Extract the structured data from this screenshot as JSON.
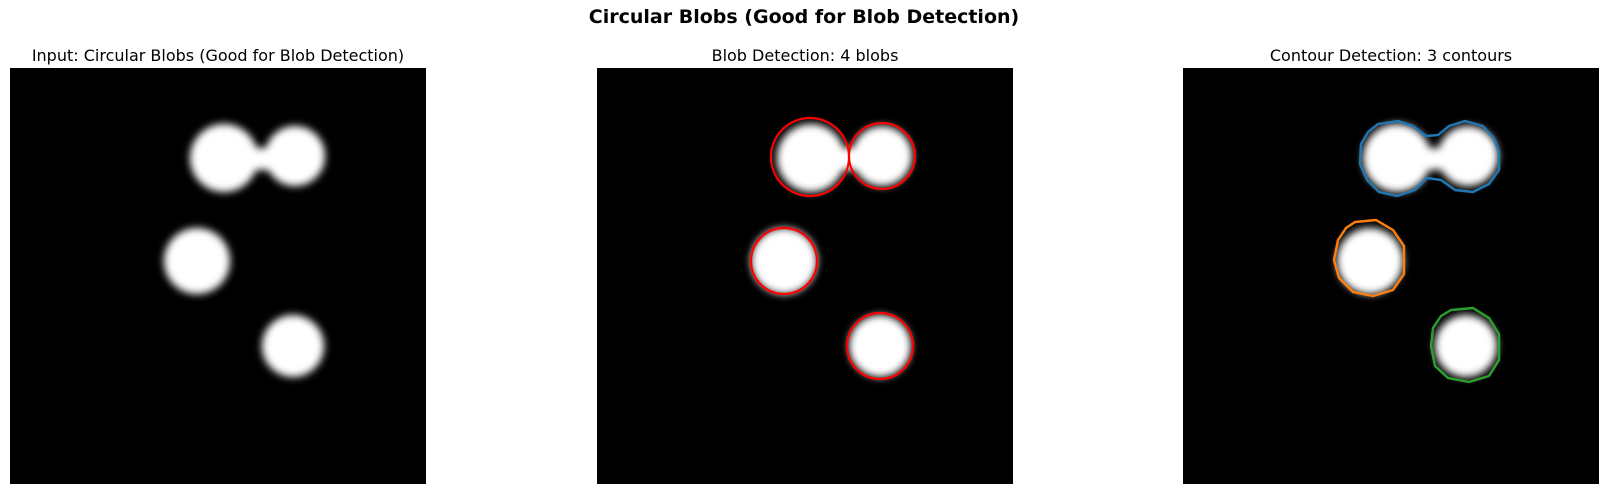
{
  "figure": {
    "title": "Circular Blobs (Good for Blob Detection)"
  },
  "panels": [
    {
      "title": "Input: Circular Blobs (Good for Blob Detection)",
      "overlay": "none"
    },
    {
      "title": "Blob Detection: 4 blobs",
      "overlay": "blob-circles",
      "overlay_color": "#ff0000"
    },
    {
      "title": "Contour Detection: 3 contours",
      "overlay": "contours",
      "contour_colors": [
        "#1f77b4",
        "#ff7f0e",
        "#2ca02c"
      ]
    }
  ],
  "colors": {
    "background": "#000000",
    "blob": "#ffffff"
  }
}
